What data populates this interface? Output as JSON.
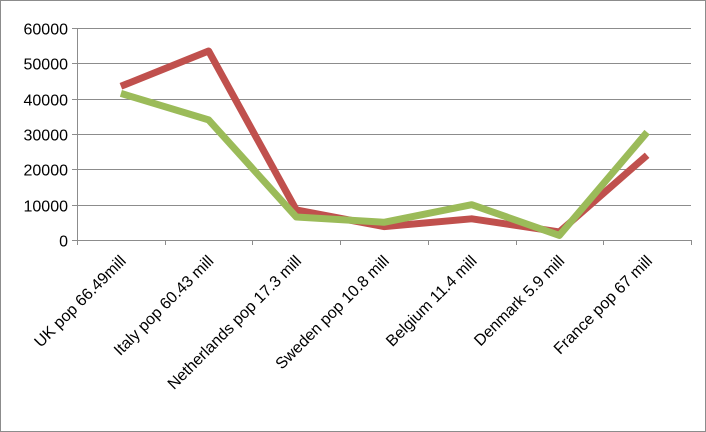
{
  "chart_data": {
    "type": "line",
    "title": "",
    "xlabel": "",
    "ylabel": "",
    "categories": [
      "UK pop 66.49mill",
      "Italy pop 60.43 mill",
      "Netherlands pop 17.3 mill",
      "Sweden pop 10.8 mill",
      "Belgium 11.4 mill",
      "Denmark 5.9 mill",
      "France pop 67 mill"
    ],
    "ylim": [
      0,
      60000
    ],
    "yticks": [
      0,
      10000,
      20000,
      30000,
      40000,
      50000,
      60000
    ],
    "grid": true,
    "legend": "none",
    "series": [
      {
        "color": "#c0504d",
        "values": [
          43500,
          53500,
          8500,
          3800,
          6000,
          2300,
          24000
        ]
      },
      {
        "color": "#9bbb59",
        "values": [
          41500,
          34000,
          6500,
          5000,
          10000,
          1300,
          30500
        ]
      }
    ],
    "colors": {
      "grid": "#8c8c8c",
      "axis": "#8c8c8c"
    }
  }
}
